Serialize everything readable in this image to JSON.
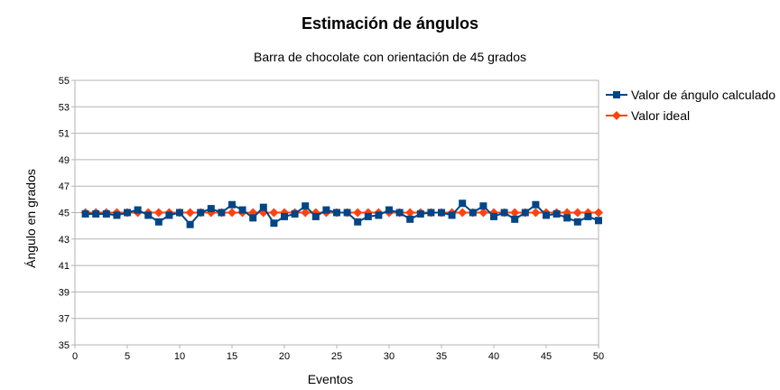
{
  "chart_data": {
    "type": "line",
    "title": "Estimación de ángulos",
    "subtitle": "Barra de chocolate con orientación de 45 grados",
    "xlabel": "Eventos",
    "ylabel": "Ángulo en grados",
    "xlim": [
      0,
      50
    ],
    "ylim": [
      35,
      55
    ],
    "xticks": [
      0,
      5,
      10,
      15,
      20,
      25,
      30,
      35,
      40,
      45,
      50
    ],
    "yticks": [
      35,
      37,
      39,
      41,
      43,
      45,
      47,
      49,
      51,
      53,
      55
    ],
    "grid": true,
    "legend_position": "right",
    "x": [
      1,
      2,
      3,
      4,
      5,
      6,
      7,
      8,
      9,
      10,
      11,
      12,
      13,
      14,
      15,
      16,
      17,
      18,
      19,
      20,
      21,
      22,
      23,
      24,
      25,
      26,
      27,
      28,
      29,
      30,
      31,
      32,
      33,
      34,
      35,
      36,
      37,
      38,
      39,
      40,
      41,
      42,
      43,
      44,
      45,
      46,
      47,
      48,
      49,
      50
    ],
    "series": [
      {
        "name": "Valor de ángulo calculado",
        "color": "#004586",
        "marker": "square",
        "values": [
          44.9,
          44.9,
          44.9,
          44.8,
          45.0,
          45.2,
          44.8,
          44.3,
          44.8,
          45.0,
          44.1,
          45.0,
          45.3,
          45.0,
          45.6,
          45.2,
          44.6,
          45.4,
          44.2,
          44.7,
          44.9,
          45.5,
          44.7,
          45.2,
          45.0,
          45.0,
          44.3,
          44.7,
          44.8,
          45.2,
          45.0,
          44.5,
          44.9,
          45.0,
          45.0,
          44.8,
          45.7,
          45.0,
          45.5,
          44.7,
          45.0,
          44.5,
          45.0,
          45.6,
          44.8,
          44.9,
          44.6,
          44.3,
          44.7,
          44.4
        ]
      },
      {
        "name": "Valor ideal",
        "color": "#ff420e",
        "marker": "diamond",
        "values": [
          45,
          45,
          45,
          45,
          45,
          45,
          45,
          45,
          45,
          45,
          45,
          45,
          45,
          45,
          45,
          45,
          45,
          45,
          45,
          45,
          45,
          45,
          45,
          45,
          45,
          45,
          45,
          45,
          45,
          45,
          45,
          45,
          45,
          45,
          45,
          45,
          45,
          45,
          45,
          45,
          45,
          45,
          45,
          45,
          45,
          45,
          45,
          45,
          45,
          45
        ]
      }
    ]
  }
}
